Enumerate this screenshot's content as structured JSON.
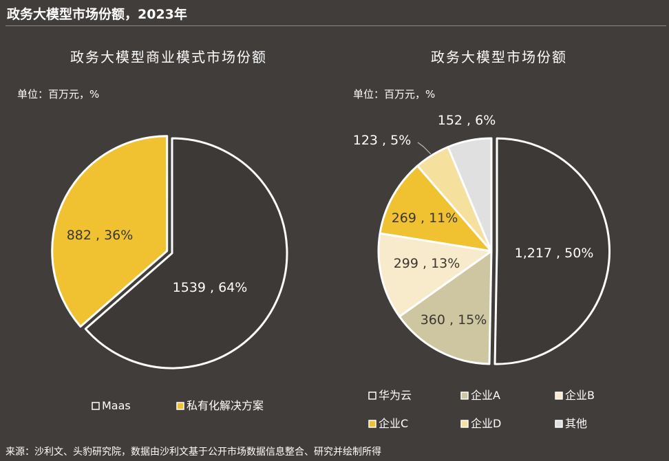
{
  "page": {
    "title": "政务大模型市场份额，2023年",
    "source": "来源：沙利文、头豹研究院，数据由沙利文基于公开市场数据信息整合、研究并绘制所得"
  },
  "colors": {
    "background": "#403d3b",
    "maas": "#3d3937",
    "private": "#f0c232",
    "huawei": "#3d3937",
    "a": "#cdc6a0",
    "b": "#f8ebcb",
    "c": "#f0c232",
    "d": "#f6e09e",
    "other": "#e0e0e0",
    "outline": "#ffffff"
  },
  "chart_data": [
    {
      "type": "pie",
      "title": "政务大模型商业模式市场份额",
      "unit_label": "单位：百万元，%",
      "slices": [
        {
          "name": "Maas",
          "value": 1539,
          "percent": 64,
          "label": "1539 , 64%"
        },
        {
          "name": "私有化解决方案",
          "value": 882,
          "percent": 36,
          "label": "882 , 36%"
        }
      ],
      "legend": [
        "Maas",
        "私有化解决方案"
      ],
      "legend_position": "bottom"
    },
    {
      "type": "pie",
      "title": "政务大模型市场份额",
      "unit_label": "单位：百万元，%",
      "slices": [
        {
          "name": "华为云",
          "value": 1217,
          "percent": 50,
          "label": "1,217 , 50%"
        },
        {
          "name": "企业A",
          "value": 360,
          "percent": 15,
          "label": "360 , 15%"
        },
        {
          "name": "企业B",
          "value": 299,
          "percent": 13,
          "label": "299 , 13%"
        },
        {
          "name": "企业C",
          "value": 269,
          "percent": 11,
          "label": "269 , 11%"
        },
        {
          "name": "企业D",
          "value": 123,
          "percent": 5,
          "label": "123 , 5%"
        },
        {
          "name": "其他",
          "value": 152,
          "percent": 6,
          "label": "152 , 6%"
        }
      ],
      "legend": [
        "华为云",
        "企业A",
        "企业B",
        "企业C",
        "企业D",
        "其他"
      ],
      "legend_position": "bottom"
    }
  ]
}
